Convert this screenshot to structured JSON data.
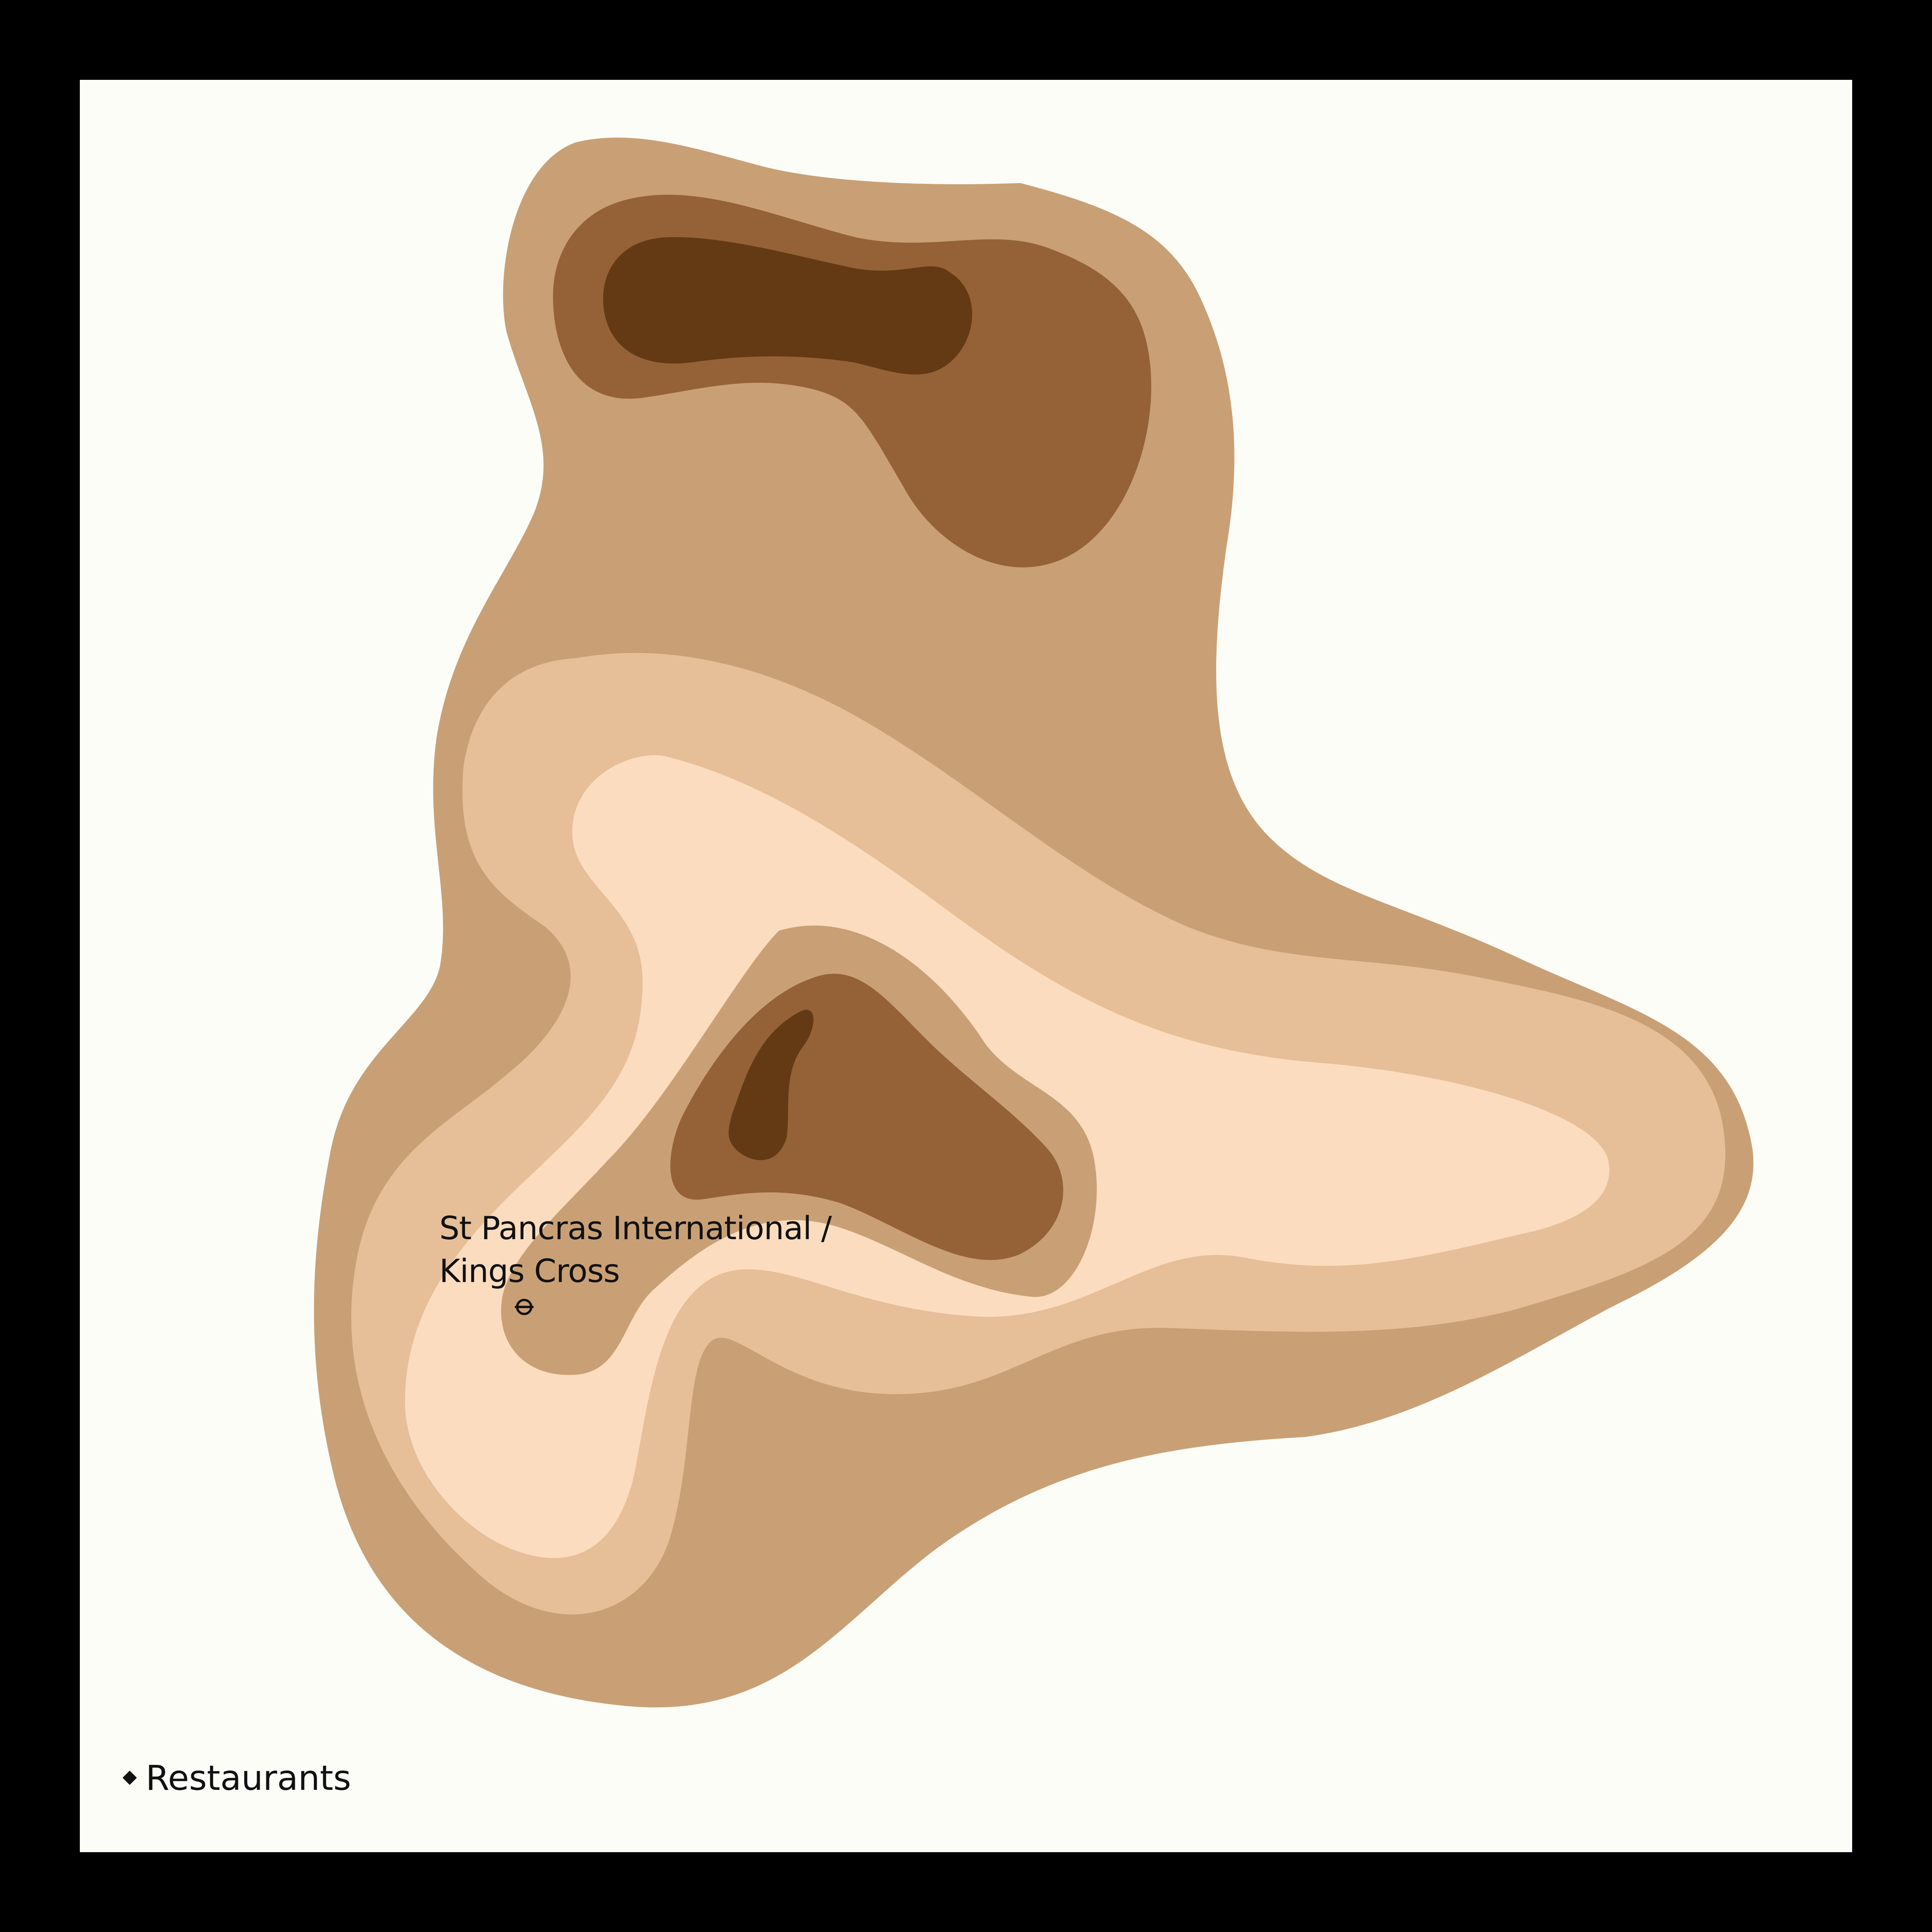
{
  "map": {
    "station": {
      "label_line1": "St Pancras International /",
      "label_line2": "Kings Cross",
      "icon": "underground-roundel-icon"
    },
    "legend": {
      "marker_icon": "diamond-icon",
      "label": "Restaurants"
    },
    "colors": {
      "frame": "#000000",
      "background": "#fdfdf8",
      "band_outer": "#c9a075",
      "band_light": "#e6be98",
      "band_lightest": "#fbdcbe",
      "band_mid": "#946236",
      "band_dark": "#633a14"
    }
  }
}
